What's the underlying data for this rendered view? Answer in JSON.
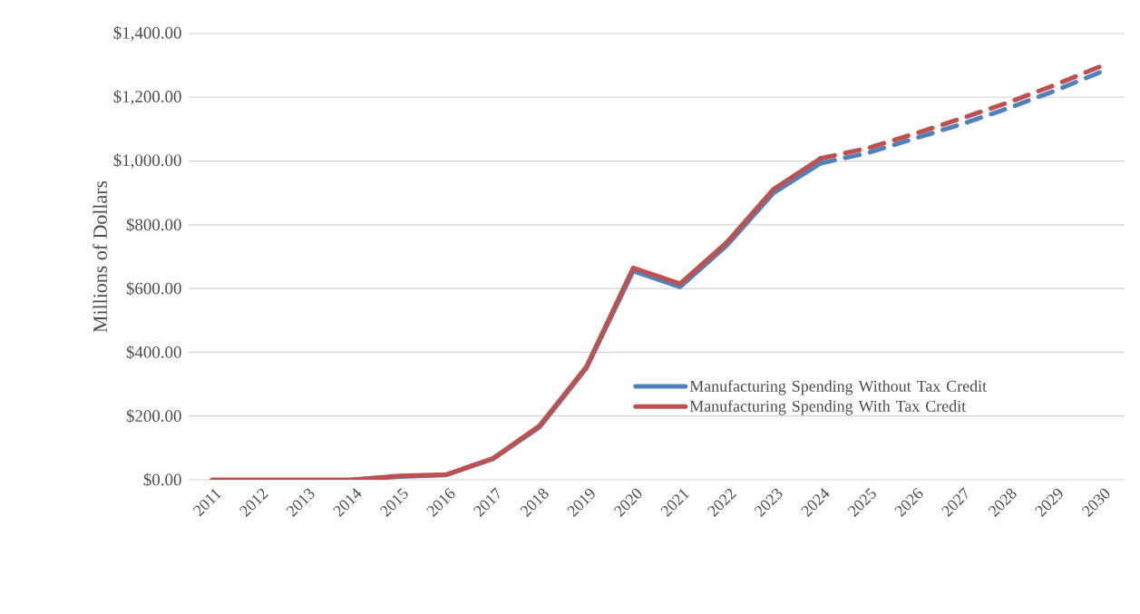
{
  "chart_data": {
    "type": "line",
    "ylabel": "Millions of Dollars",
    "categories": [
      "2011",
      "2012",
      "2013",
      "2014",
      "2015",
      "2016",
      "2017",
      "2018",
      "2019",
      "2020",
      "2021",
      "2022",
      "2023",
      "2024",
      "2025",
      "2026",
      "2027",
      "2028",
      "2029",
      "2030"
    ],
    "series": [
      {
        "name": "Manufacturing Spending Without Tax Credit",
        "color": "#4f81bd",
        "line_style": "solid",
        "values": [
          null,
          null,
          null,
          0,
          10,
          15,
          65,
          165,
          350,
          655,
          605,
          735,
          900,
          993,
          null,
          null,
          null,
          null,
          null,
          null
        ]
      },
      {
        "name": "Manufacturing Spending With Tax Credit",
        "color": "#c0504d",
        "line_style": "solid",
        "values": [
          0,
          0,
          0,
          0,
          12,
          16,
          67,
          170,
          355,
          665,
          615,
          745,
          912,
          1008,
          null,
          null,
          null,
          null,
          null,
          null
        ]
      },
      {
        "color": "#4f81bd",
        "line_style": "dashed",
        "values": [
          null,
          null,
          null,
          null,
          null,
          null,
          null,
          null,
          null,
          null,
          null,
          null,
          null,
          993,
          1025,
          1070,
          1115,
          1165,
          1220,
          1280
        ]
      },
      {
        "color": "#c0504d",
        "line_style": "dashed",
        "values": [
          null,
          null,
          null,
          null,
          null,
          null,
          null,
          null,
          null,
          null,
          null,
          null,
          null,
          1008,
          1040,
          1085,
          1133,
          1183,
          1238,
          1298
        ]
      }
    ],
    "ylim": [
      0,
      1400
    ],
    "yticks": [
      {
        "value": 0,
        "label": "$0.00"
      },
      {
        "value": 200,
        "label": "$200.00"
      },
      {
        "value": 400,
        "label": "$400.00"
      },
      {
        "value": 600,
        "label": "$600.00"
      },
      {
        "value": 800,
        "label": "$800.00"
      },
      {
        "value": 1000,
        "label": "$1,000.00"
      },
      {
        "value": 1200,
        "label": "$1,200.00"
      },
      {
        "value": 1400,
        "label": "$1,400.00"
      }
    ],
    "grid": "y",
    "legend": "bottom right",
    "marker": "none"
  }
}
